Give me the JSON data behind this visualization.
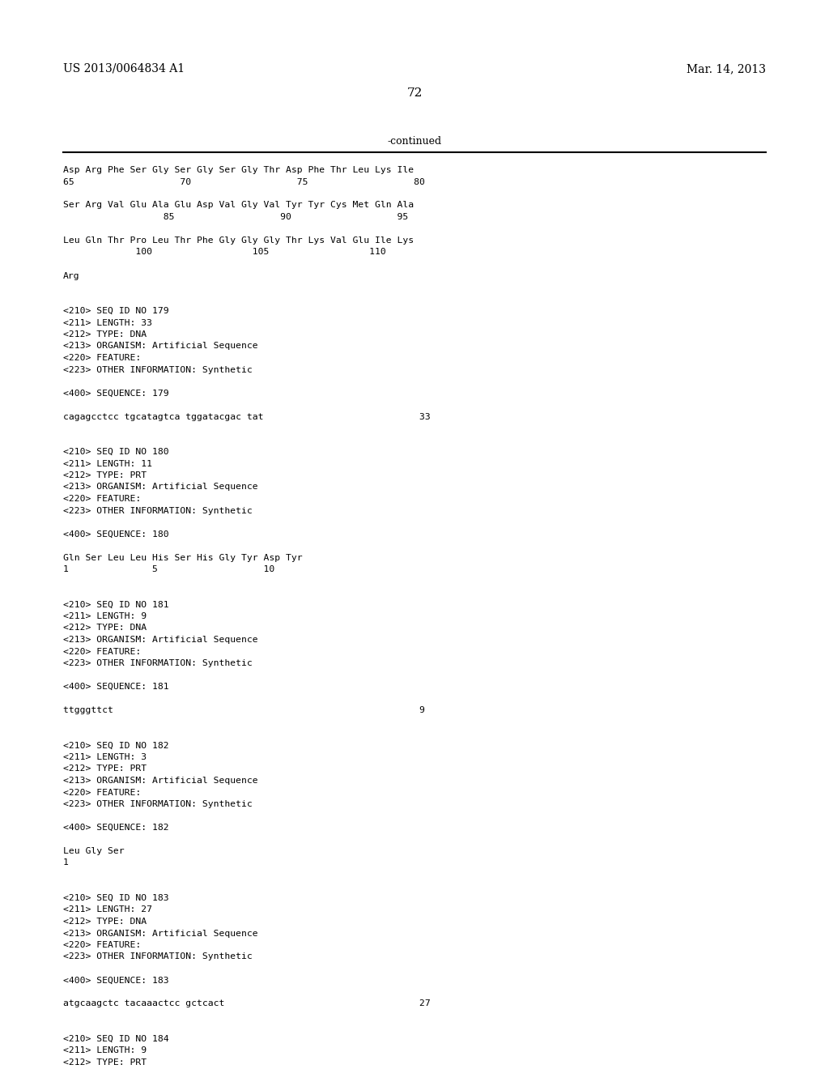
{
  "header_left": "US 2013/0064834 A1",
  "header_right": "Mar. 14, 2013",
  "page_number": "72",
  "continued_label": "-continued",
  "background_color": "#ffffff",
  "text_color": "#000000",
  "lines": [
    "Asp Arg Phe Ser Gly Ser Gly Ser Gly Thr Asp Phe Thr Leu Lys Ile",
    "65                   70                   75                   80",
    "",
    "Ser Arg Val Glu Ala Glu Asp Val Gly Val Tyr Tyr Cys Met Gln Ala",
    "                  85                   90                   95",
    "",
    "Leu Gln Thr Pro Leu Thr Phe Gly Gly Gly Thr Lys Val Glu Ile Lys",
    "             100                  105                  110",
    "",
    "Arg",
    "",
    "",
    "<210> SEQ ID NO 179",
    "<211> LENGTH: 33",
    "<212> TYPE: DNA",
    "<213> ORGANISM: Artificial Sequence",
    "<220> FEATURE:",
    "<223> OTHER INFORMATION: Synthetic",
    "",
    "<400> SEQUENCE: 179",
    "",
    "cagagcctcc tgcatagtca tggatacgac tat                            33",
    "",
    "",
    "<210> SEQ ID NO 180",
    "<211> LENGTH: 11",
    "<212> TYPE: PRT",
    "<213> ORGANISM: Artificial Sequence",
    "<220> FEATURE:",
    "<223> OTHER INFORMATION: Synthetic",
    "",
    "<400> SEQUENCE: 180",
    "",
    "Gln Ser Leu Leu His Ser His Gly Tyr Asp Tyr",
    "1               5                   10",
    "",
    "",
    "<210> SEQ ID NO 181",
    "<211> LENGTH: 9",
    "<212> TYPE: DNA",
    "<213> ORGANISM: Artificial Sequence",
    "<220> FEATURE:",
    "<223> OTHER INFORMATION: Synthetic",
    "",
    "<400> SEQUENCE: 181",
    "",
    "ttgggttct                                                       9",
    "",
    "",
    "<210> SEQ ID NO 182",
    "<211> LENGTH: 3",
    "<212> TYPE: PRT",
    "<213> ORGANISM: Artificial Sequence",
    "<220> FEATURE:",
    "<223> OTHER INFORMATION: Synthetic",
    "",
    "<400> SEQUENCE: 182",
    "",
    "Leu Gly Ser",
    "1",
    "",
    "",
    "<210> SEQ ID NO 183",
    "<211> LENGTH: 27",
    "<212> TYPE: DNA",
    "<213> ORGANISM: Artificial Sequence",
    "<220> FEATURE:",
    "<223> OTHER INFORMATION: Synthetic",
    "",
    "<400> SEQUENCE: 183",
    "",
    "atgcaagctc tacaaactcc gctcact                                   27",
    "",
    "",
    "<210> SEQ ID NO 184",
    "<211> LENGTH: 9",
    "<212> TYPE: PRT"
  ]
}
